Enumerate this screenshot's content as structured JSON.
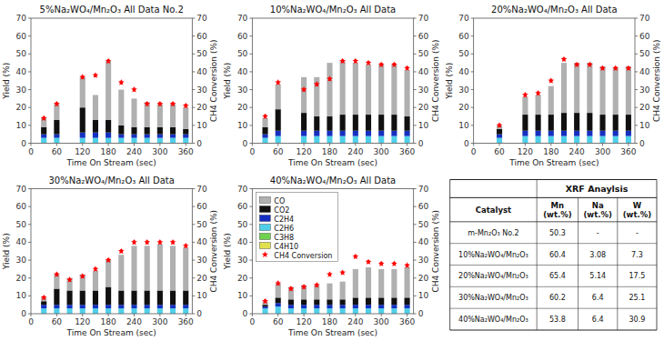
{
  "chart_data": [
    {
      "type": "bar",
      "stacked": true,
      "grid": false,
      "title": "5%Na₂WO₄/Mn₂O₃ All Data No.2",
      "xlabel": "Time On Stream (sec)",
      "ylabel": "Yield (%)",
      "y2label": "CH4 Conversion (%)",
      "x": [
        30,
        60,
        120,
        150,
        180,
        210,
        240,
        270,
        300,
        330,
        360
      ],
      "xlim": [
        0,
        375
      ],
      "xticks": [
        0,
        60,
        120,
        180,
        240,
        300,
        360
      ],
      "ylim": [
        0,
        70
      ],
      "yticks": [
        0,
        10,
        20,
        30,
        40,
        50,
        60,
        70
      ],
      "y2lim": [
        0,
        70
      ],
      "y2ticks": [
        0,
        10,
        20,
        30,
        40,
        50,
        60,
        70
      ],
      "series": [
        {
          "name": "C4H10",
          "color": "#e0e050",
          "values": [
            0,
            0,
            0,
            0,
            0,
            0,
            0,
            0,
            0,
            0,
            0
          ]
        },
        {
          "name": "C3H8",
          "color": "#70d050",
          "values": [
            0,
            0,
            0,
            0,
            0,
            0,
            0,
            0,
            0,
            0,
            0
          ]
        },
        {
          "name": "C2H6",
          "color": "#50d0e8",
          "values": [
            3,
            3,
            3,
            3,
            3,
            3,
            3,
            3,
            3,
            3,
            3
          ]
        },
        {
          "name": "C2H4",
          "color": "#1530c0",
          "values": [
            2,
            2,
            3,
            3,
            3,
            2,
            2,
            2,
            2,
            2,
            2
          ]
        },
        {
          "name": "CO2",
          "color": "#101010",
          "values": [
            4,
            8,
            14,
            7,
            7,
            5,
            4,
            4,
            4,
            4,
            3
          ]
        },
        {
          "name": "CO",
          "color": "#b0b0b0",
          "values": [
            5,
            9,
            17,
            14,
            33,
            20,
            16,
            14,
            13,
            13,
            12
          ]
        },
        {
          "name": "CH4 Conversion",
          "type": "scatter",
          "marker": "star",
          "color": "red",
          "axis": "y2",
          "values": [
            14,
            22,
            37,
            38,
            46,
            34,
            30,
            22,
            22,
            22,
            21
          ],
          "error": [
            0.8,
            0.8,
            0.8,
            0.8,
            0.8,
            0.8,
            0.8,
            0.8,
            0.8,
            0.8,
            0.8
          ]
        }
      ]
    },
    {
      "type": "bar",
      "stacked": true,
      "grid": false,
      "title": "10%Na₂WO₄/Mn₂O₃ All Data",
      "xlabel": "Time On Stream (sec)",
      "ylabel": "Yield (%)",
      "y2label": "CH4 Conversion (%)",
      "x": [
        30,
        60,
        120,
        150,
        180,
        210,
        240,
        270,
        300,
        330,
        360
      ],
      "xlim": [
        0,
        375
      ],
      "xticks": [
        0,
        60,
        120,
        180,
        240,
        300,
        360
      ],
      "ylim": [
        0,
        70
      ],
      "yticks": [
        0,
        10,
        20,
        30,
        40,
        50,
        60,
        70
      ],
      "y2lim": [
        0,
        70
      ],
      "y2ticks": [
        0,
        10,
        20,
        30,
        40,
        50,
        60,
        70
      ],
      "series": [
        {
          "name": "C4H10",
          "color": "#e0e050",
          "values": [
            0,
            0,
            0,
            0,
            0,
            0,
            0,
            0,
            0,
            0,
            0
          ]
        },
        {
          "name": "C3H8",
          "color": "#70d050",
          "values": [
            0,
            0,
            0,
            0,
            0,
            0,
            0,
            0,
            0,
            0,
            0
          ]
        },
        {
          "name": "C2H6",
          "color": "#50d0e8",
          "values": [
            3,
            4,
            4,
            4,
            4,
            4,
            4,
            4,
            4,
            4,
            4
          ]
        },
        {
          "name": "C2H4",
          "color": "#1530c0",
          "values": [
            2,
            3,
            3,
            3,
            3,
            3,
            3,
            3,
            3,
            3,
            3
          ]
        },
        {
          "name": "CO2",
          "color": "#101010",
          "values": [
            4,
            12,
            10,
            8,
            8,
            9,
            9,
            9,
            9,
            9,
            8
          ]
        },
        {
          "name": "CO",
          "color": "#b0b0b0",
          "values": [
            5,
            14,
            20,
            22,
            30,
            30,
            29,
            28,
            28,
            28,
            26
          ]
        },
        {
          "name": "CH4 Conversion",
          "type": "scatter",
          "marker": "star",
          "color": "red",
          "axis": "y2",
          "values": [
            15,
            34,
            30,
            33,
            36,
            46,
            46,
            45,
            44,
            44,
            42
          ],
          "error": [
            0.8,
            0.8,
            0.8,
            0.8,
            0.8,
            0.8,
            0.8,
            0.8,
            0.8,
            0.8,
            0.8
          ]
        }
      ]
    },
    {
      "type": "bar",
      "stacked": true,
      "grid": false,
      "title": "20%Na₂WO₄/Mn₂O₃ All Data",
      "xlabel": "Time On Stream (sec)",
      "ylabel": "Yield (%)",
      "y2label": "CH4 Conversion (%)",
      "x": [
        60,
        120,
        150,
        180,
        210,
        240,
        270,
        300,
        330,
        360
      ],
      "xlim": [
        0,
        375
      ],
      "xticks": [
        0,
        60,
        120,
        180,
        240,
        300,
        360
      ],
      "ylim": [
        0,
        70
      ],
      "yticks": [
        0,
        10,
        20,
        30,
        40,
        50,
        60,
        70
      ],
      "y2lim": [
        0,
        70
      ],
      "y2ticks": [
        0,
        10,
        20,
        30,
        40,
        50,
        60,
        70
      ],
      "series": [
        {
          "name": "C4H10",
          "color": "#e0e050",
          "values": [
            0,
            0,
            0,
            0,
            0,
            0,
            0,
            0,
            0,
            0
          ]
        },
        {
          "name": "C3H8",
          "color": "#70d050",
          "values": [
            0,
            0,
            0,
            0,
            0,
            0,
            0,
            0,
            0,
            0
          ]
        },
        {
          "name": "C2H6",
          "color": "#50d0e8",
          "values": [
            3,
            4,
            4,
            4,
            4,
            4,
            4,
            4,
            4,
            4
          ]
        },
        {
          "name": "C2H4",
          "color": "#1530c0",
          "values": [
            2,
            3,
            3,
            3,
            3,
            3,
            3,
            3,
            3,
            3
          ]
        },
        {
          "name": "CO2",
          "color": "#101010",
          "values": [
            3,
            9,
            9,
            9,
            10,
            10,
            10,
            9,
            9,
            9
          ]
        },
        {
          "name": "CO",
          "color": "#b0b0b0",
          "values": [
            2,
            10,
            11,
            16,
            28,
            28,
            28,
            27,
            26,
            27
          ]
        },
        {
          "name": "CH4 Conversion",
          "type": "scatter",
          "marker": "star",
          "color": "red",
          "axis": "y2",
          "values": [
            10,
            27,
            28,
            35,
            47,
            44,
            44,
            42,
            42,
            42
          ],
          "error": [
            0.8,
            0.8,
            0.8,
            0.8,
            0.8,
            0.8,
            0.8,
            0.8,
            0.8,
            0.8
          ]
        }
      ]
    },
    {
      "type": "bar",
      "stacked": true,
      "grid": false,
      "title": "30%Na₂WO₄/Mn₂O₃ All Data",
      "xlabel": "Time On Stream (sec)",
      "ylabel": "Yield (%)",
      "y2label": "CH4 Conversion (%)",
      "x": [
        30,
        60,
        90,
        120,
        150,
        180,
        210,
        240,
        270,
        300,
        330,
        360
      ],
      "xlim": [
        0,
        375
      ],
      "xticks": [
        0,
        60,
        120,
        180,
        240,
        300,
        360
      ],
      "ylim": [
        0,
        70
      ],
      "yticks": [
        0,
        10,
        20,
        30,
        40,
        50,
        60,
        70
      ],
      "y2lim": [
        0,
        70
      ],
      "y2ticks": [
        0,
        10,
        20,
        30,
        40,
        50,
        60,
        70
      ],
      "series": [
        {
          "name": "C4H10",
          "color": "#e0e050",
          "values": [
            0,
            0,
            0,
            0,
            0,
            0,
            0,
            0,
            0,
            0,
            0,
            0
          ]
        },
        {
          "name": "C3H8",
          "color": "#70d050",
          "values": [
            0,
            0,
            0,
            0,
            0,
            0,
            0,
            0,
            0,
            0,
            0,
            0
          ]
        },
        {
          "name": "C2H6",
          "color": "#50d0e8",
          "values": [
            3,
            3,
            3,
            3,
            3,
            3,
            3,
            3,
            3,
            3,
            3,
            3
          ]
        },
        {
          "name": "C2H4",
          "color": "#1530c0",
          "values": [
            2,
            2,
            2,
            2,
            2,
            2,
            2,
            2,
            2,
            2,
            2,
            2
          ]
        },
        {
          "name": "CO2",
          "color": "#101010",
          "values": [
            2,
            9,
            8,
            8,
            8,
            10,
            8,
            8,
            8,
            8,
            8,
            8
          ]
        },
        {
          "name": "CO",
          "color": "#b0b0b0",
          "values": [
            2,
            8,
            7,
            9,
            11,
            15,
            20,
            25,
            25,
            26,
            25,
            24
          ]
        },
        {
          "name": "CH4 Conversion",
          "type": "scatter",
          "marker": "star",
          "color": "red",
          "axis": "y2",
          "values": [
            9,
            22,
            19,
            21,
            25,
            30,
            35,
            40,
            40,
            40,
            40,
            38
          ],
          "error": [
            0.8,
            0.8,
            0.8,
            0.8,
            0.8,
            0.8,
            0.8,
            0.8,
            0.8,
            0.8,
            0.8,
            0.8
          ]
        }
      ]
    },
    {
      "type": "bar",
      "stacked": true,
      "grid": false,
      "legend": "upper left",
      "title": "40%Na₂WO₄/Mn₂O₃ All Data",
      "xlabel": "Time On Stream (sec)",
      "ylabel": "Yield (%)",
      "y2label": "CH4 Conversion (%)",
      "x": [
        30,
        60,
        90,
        120,
        150,
        180,
        210,
        240,
        270,
        300,
        330,
        360
      ],
      "xlim": [
        0,
        375
      ],
      "xticks": [
        0,
        60,
        120,
        180,
        240,
        300,
        360
      ],
      "ylim": [
        0,
        70
      ],
      "yticks": [
        0,
        10,
        20,
        30,
        40,
        50,
        60,
        70
      ],
      "y2lim": [
        0,
        70
      ],
      "y2ticks": [
        0,
        10,
        20,
        30,
        40,
        50,
        60,
        70
      ],
      "series": [
        {
          "name": "C4H10",
          "color": "#e0e050",
          "values": [
            0,
            0,
            0,
            0,
            0,
            0,
            0,
            0,
            0,
            0,
            0,
            0
          ]
        },
        {
          "name": "C3H8",
          "color": "#70d050",
          "values": [
            0,
            0,
            0,
            0,
            0,
            0,
            0,
            0,
            0,
            0,
            0,
            0
          ]
        },
        {
          "name": "C2H6",
          "color": "#50d0e8",
          "values": [
            3,
            4,
            3,
            3,
            3,
            3,
            3,
            3,
            3,
            3,
            3,
            3
          ]
        },
        {
          "name": "C2H4",
          "color": "#1530c0",
          "values": [
            1,
            2,
            2,
            2,
            2,
            2,
            2,
            2,
            2,
            2,
            2,
            2
          ]
        },
        {
          "name": "CO2",
          "color": "#101010",
          "values": [
            1,
            3,
            3,
            3,
            3,
            3,
            3,
            4,
            4,
            4,
            4,
            4
          ]
        },
        {
          "name": "CO",
          "color": "#b0b0b0",
          "values": [
            2,
            8,
            7,
            8,
            8,
            9,
            10,
            16,
            17,
            16,
            16,
            17
          ]
        },
        {
          "name": "CH4 Conversion",
          "type": "scatter",
          "marker": "star",
          "color": "red",
          "axis": "y2",
          "values": [
            7,
            17,
            14,
            15,
            16,
            22,
            23,
            32,
            29,
            28,
            28,
            27
          ],
          "error": [
            0.8,
            0.8,
            0.8,
            0.8,
            0.8,
            0.8,
            0.8,
            0.8,
            0.8,
            0.8,
            0.8,
            0.8
          ]
        }
      ]
    },
    {
      "type": "table",
      "title": "XRF Anaylsis",
      "columns": [
        "Catalyst",
        "Mn\n(wt.%)",
        "Na\n(wt.%)",
        "W\n(wt.%)"
      ],
      "rows": [
        [
          "m-Mn₂O₃ No.2",
          "50.3",
          "-",
          "-"
        ],
        [
          "10%Na₂WO₄/Mn₂O₃",
          "60.4",
          "3.08",
          "7.3"
        ],
        [
          "20%Na₂WO₄/Mn₂O₃",
          "65.4",
          "5.14",
          "17.5"
        ],
        [
          "30%Na₂WO₄/Mn₂O₃",
          "60.2",
          "6.4",
          "25.1"
        ],
        [
          "40%Na₂WO₄/Mn₂O₃",
          "53.8",
          "6.4",
          "30.9"
        ]
      ]
    }
  ]
}
